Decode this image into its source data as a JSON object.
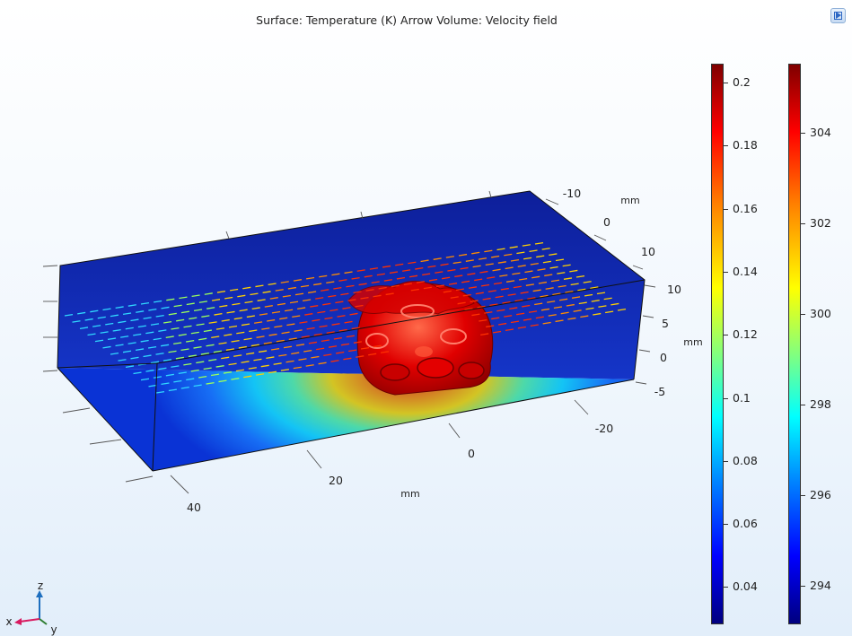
{
  "plot": {
    "title": "Surface: Temperature (K)  Arrow Volume: Velocity field"
  },
  "axes": {
    "x": {
      "unit": "mm",
      "ticks": [
        "40",
        "20",
        "0",
        "-20"
      ]
    },
    "y": {
      "unit": "mm",
      "ticks": [
        "-10",
        "0",
        "10"
      ]
    },
    "z": {
      "unit": "mm",
      "ticks": [
        "10",
        "5",
        "0",
        "-5"
      ]
    }
  },
  "colorbars": {
    "velocity": {
      "ticks": [
        "0.2",
        "0.18",
        "0.16",
        "0.14",
        "0.12",
        "0.1",
        "0.08",
        "0.06",
        "0.04"
      ]
    },
    "temperature": {
      "ticks": [
        "304",
        "302",
        "300",
        "298",
        "296",
        "294"
      ]
    }
  },
  "triad": {
    "x": "x",
    "y": "y",
    "z": "z"
  },
  "colors": {
    "jet_dark_red": "#7f0000",
    "jet_red": "#ff0000",
    "jet_yellow": "#ffff00",
    "jet_cyan": "#00ffff",
    "jet_blue": "#0000ff",
    "jet_dark_blue": "#00007f",
    "triad_x": "#d81b60",
    "triad_y": "#2e7d32",
    "triad_z": "#1e6fbf"
  },
  "icons": {
    "toolbar": "graphics-window-icon"
  }
}
